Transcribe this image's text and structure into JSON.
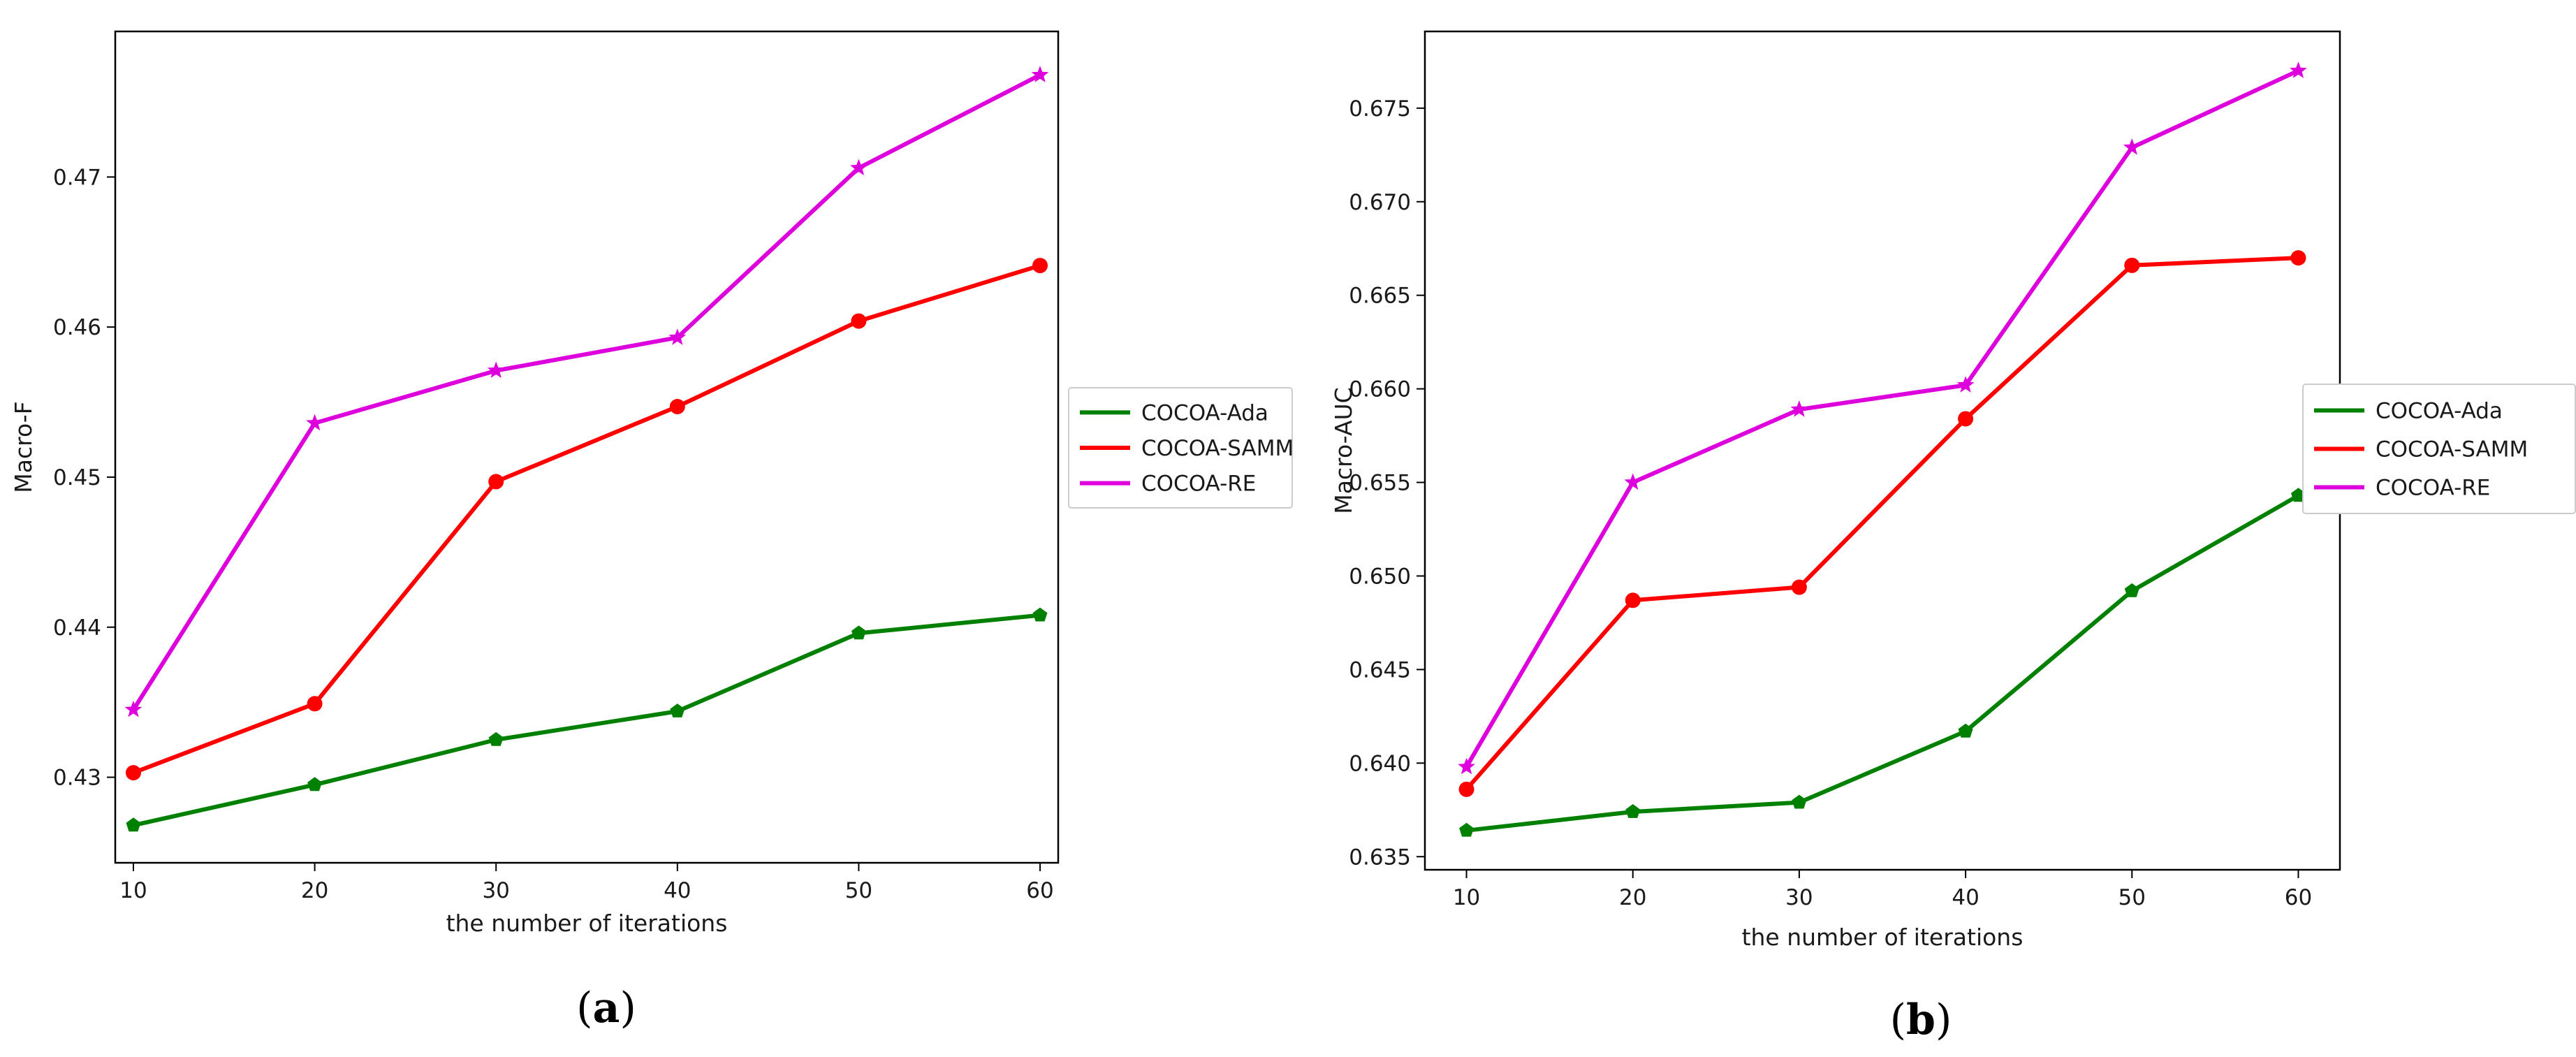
{
  "chart_data": [
    {
      "type": "line",
      "panel_label": "a",
      "caption_open": "(",
      "caption_close": ")",
      "title": "",
      "xlabel": "the number of iterations",
      "ylabel": "Macro-F",
      "x": [
        10,
        20,
        30,
        40,
        50,
        60
      ],
      "x_ticks": [
        "10",
        "20",
        "30",
        "40",
        "50",
        "60"
      ],
      "y_ticks": [
        "0.43",
        "0.44",
        "0.45",
        "0.46",
        "0.47"
      ],
      "y_tick_values": [
        0.43,
        0.44,
        0.45,
        0.46,
        0.47
      ],
      "xlim": [
        9,
        61
      ],
      "ylim": [
        0.4243,
        0.4797
      ],
      "legend_position": "right",
      "series": [
        {
          "name": "COCOA-Ada",
          "color": "#008000",
          "marker": "pentagon",
          "values": [
            0.4268,
            0.4295,
            0.4325,
            0.4344,
            0.4396,
            0.4408
          ]
        },
        {
          "name": "COCOA-SAMM",
          "color": "#ff0000",
          "marker": "circle",
          "values": [
            0.4303,
            0.4349,
            0.4497,
            0.4547,
            0.4604,
            0.4641
          ]
        },
        {
          "name": "COCOA-RE",
          "color": "#dd00dd",
          "marker": "star",
          "values": [
            0.4345,
            0.4536,
            0.4571,
            0.4593,
            0.4706,
            0.4768
          ]
        }
      ]
    },
    {
      "type": "line",
      "panel_label": "b",
      "caption_open": "(",
      "caption_close": ")",
      "title": "",
      "xlabel": "the number of iterations",
      "ylabel": "Macro-AUC",
      "x": [
        10,
        20,
        30,
        40,
        50,
        60
      ],
      "x_ticks": [
        "10",
        "20",
        "30",
        "40",
        "50",
        "60"
      ],
      "y_ticks": [
        "0.635",
        "0.640",
        "0.645",
        "0.650",
        "0.655",
        "0.660",
        "0.665",
        "0.670",
        "0.675"
      ],
      "y_tick_values": [
        0.635,
        0.64,
        0.645,
        0.65,
        0.655,
        0.66,
        0.665,
        0.67,
        0.675
      ],
      "xlim": [
        7.5,
        62.5
      ],
      "ylim": [
        0.6343,
        0.6791
      ],
      "legend_position": "right",
      "series": [
        {
          "name": "COCOA-Ada",
          "color": "#008000",
          "marker": "pentagon",
          "values": [
            0.6364,
            0.6374,
            0.6379,
            0.6417,
            0.6492,
            0.6543
          ]
        },
        {
          "name": "COCOA-SAMM",
          "color": "#ff0000",
          "marker": "circle",
          "values": [
            0.6386,
            0.6487,
            0.6494,
            0.6584,
            0.6666,
            0.667
          ]
        },
        {
          "name": "COCOA-RE",
          "color": "#dd00dd",
          "marker": "star",
          "values": [
            0.6398,
            0.655,
            0.6589,
            0.6602,
            0.6729,
            0.677
          ]
        }
      ]
    }
  ]
}
